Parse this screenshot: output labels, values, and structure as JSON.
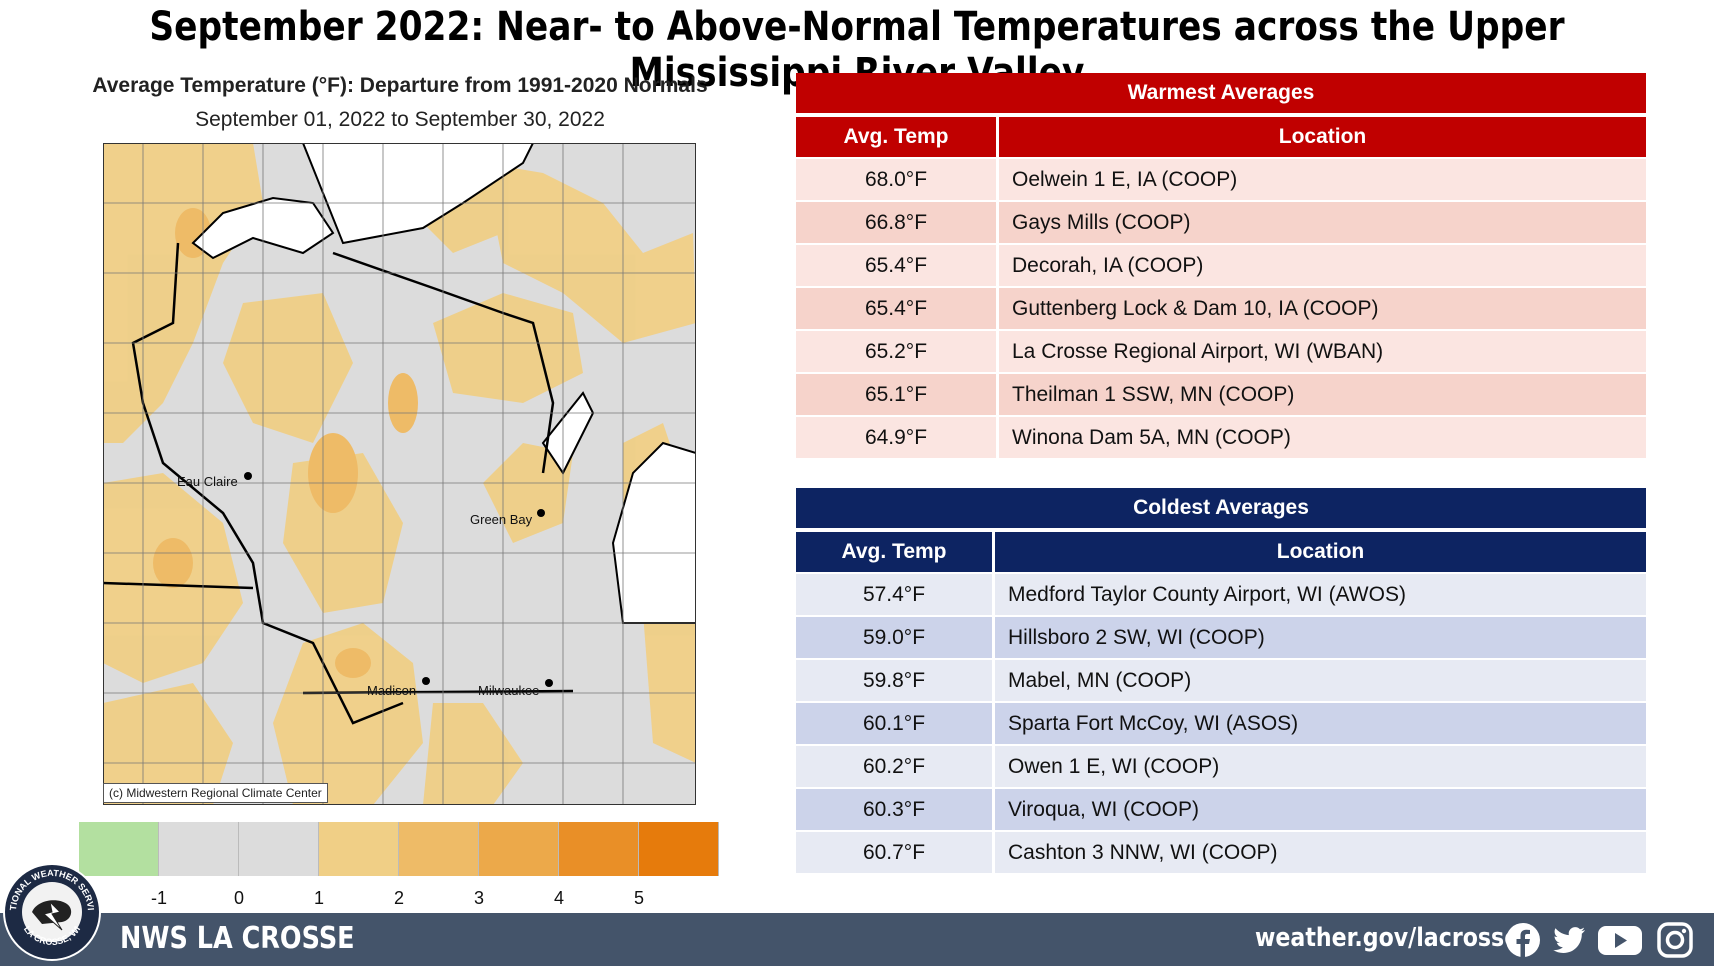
{
  "title": "September 2022:  Near- to Above-Normal Temperatures across the Upper Mississippi River Valley",
  "map": {
    "title": "Average Temperature (°F): Departure from 1991-2020 Normals",
    "subtitle": "September 01, 2022 to September 30, 2022",
    "copyright": "(c) Midwestern Regional Climate Center",
    "cities": {
      "eau_claire": "Eau Claire",
      "green_bay": "Green Bay",
      "madison": "Madison",
      "milwaukee": "Milwaukee"
    },
    "legend": {
      "colors": [
        "#b3e0a0",
        "#dcdcdc",
        "#dcdcdc",
        "#f0cf86",
        "#eebb67",
        "#eca94a",
        "#e98f27",
        "#e67b0c"
      ],
      "labels": [
        "-1",
        "0",
        "1",
        "2",
        "3",
        "4",
        "5"
      ]
    }
  },
  "warmest": {
    "title": "Warmest  Averages",
    "col_temp": "Avg. Temp",
    "col_location": "Location",
    "rows": [
      {
        "temp": "68.0°F",
        "location": "Oelwein 1 E, IA (COOP)"
      },
      {
        "temp": "66.8°F",
        "location": "Gays Mills (COOP)"
      },
      {
        "temp": "65.4°F",
        "location": "Decorah, IA (COOP)"
      },
      {
        "temp": "65.4°F",
        "location": "Guttenberg Lock & Dam 10, IA (COOP)"
      },
      {
        "temp": "65.2°F",
        "location": "La Crosse Regional Airport, WI (WBAN)"
      },
      {
        "temp": "65.1°F",
        "location": "Theilman 1 SSW, MN (COOP)"
      },
      {
        "temp": "64.9°F",
        "location": "Winona Dam 5A, MN (COOP)"
      }
    ]
  },
  "coldest": {
    "title": "Coldest Averages",
    "col_temp": "Avg. Temp",
    "col_location": "Location",
    "rows": [
      {
        "temp": "57.4°F",
        "location": "Medford Taylor County Airport, WI (AWOS)"
      },
      {
        "temp": "59.0°F",
        "location": "Hillsboro 2 SW, WI (COOP)"
      },
      {
        "temp": "59.8°F",
        "location": "Mabel, MN (COOP)"
      },
      {
        "temp": "60.1°F",
        "location": "Sparta Fort McCoy, WI (ASOS)"
      },
      {
        "temp": "60.2°F",
        "location": "Owen 1 E, WI (COOP)"
      },
      {
        "temp": "60.3°F",
        "location": "Viroqua, WI (COOP)"
      },
      {
        "temp": "60.7°F",
        "location": "Cashton 3 NNW, WI (COOP)"
      }
    ]
  },
  "footer": {
    "name": "NWS LA CROSSE",
    "url": "weather.gov/lacrosse",
    "logo_text": "NATIONAL WEATHER SERVICE",
    "logo_city": "LA CROSSE, WI",
    "icons": [
      "facebook-icon",
      "twitter-icon",
      "youtube-icon",
      "instagram-icon"
    ]
  }
}
